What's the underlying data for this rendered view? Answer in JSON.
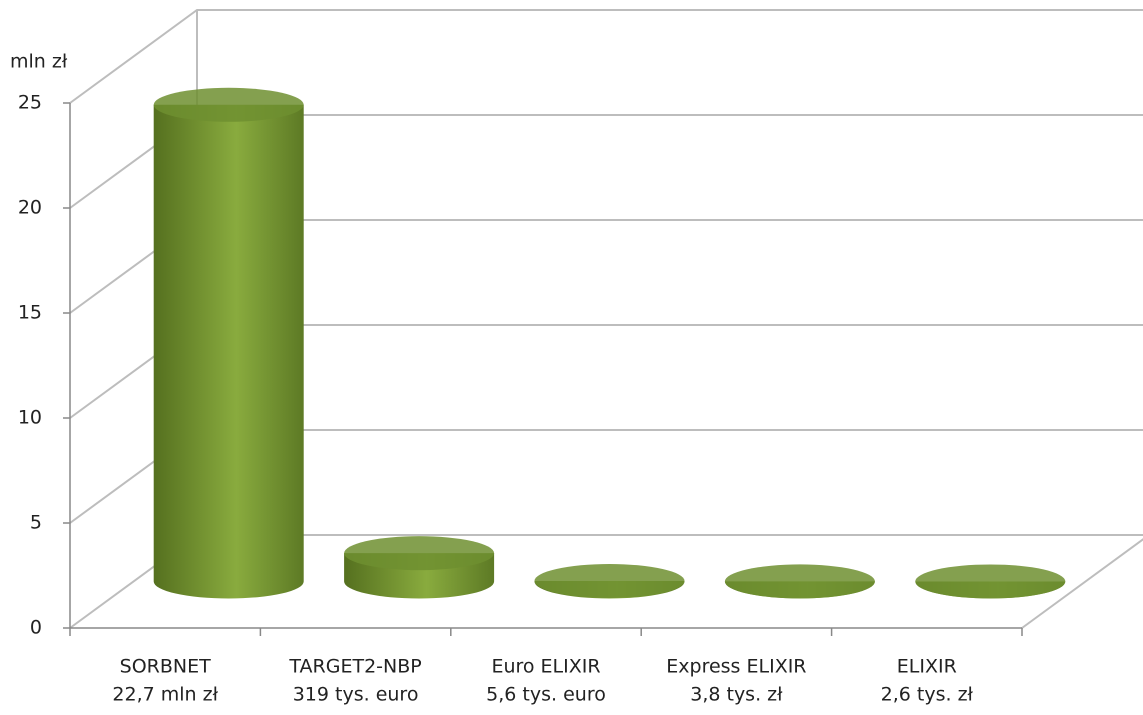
{
  "chart_data": {
    "type": "cylinder",
    "y_axis_label": "mln zł",
    "categories": [
      [
        "SORBNET",
        "22,7 mln zł"
      ],
      [
        "TARGET2-NBP",
        "319 tys. euro"
      ],
      [
        "Euro ELIXIR",
        "5,6 tys. euro"
      ],
      [
        "Express ELIXIR",
        "3,8 tys. zł"
      ],
      [
        "ELIXIR",
        "2,6 tys. zł"
      ]
    ],
    "values": [
      22.7,
      1.35,
      0.024,
      0.0038,
      0.0026
    ],
    "color": "#6f8f30",
    "ylim": [
      0,
      25
    ],
    "yticks": [
      0,
      5,
      10,
      15,
      20,
      25
    ],
    "grid": true
  }
}
